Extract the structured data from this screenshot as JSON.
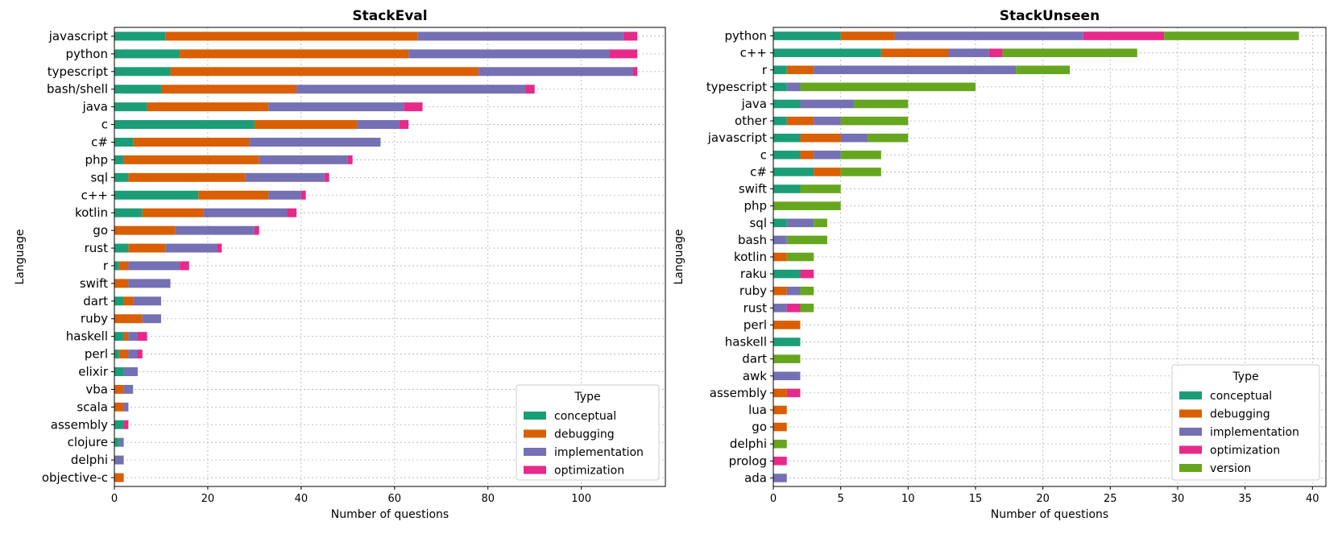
{
  "colors": {
    "conceptual": "#1b9e77",
    "debugging": "#d95f02",
    "implementation": "#7570b3",
    "optimization": "#e7298a",
    "version": "#66a61e"
  },
  "chart_data": [
    {
      "type": "bar",
      "orientation": "horizontal",
      "stacked": true,
      "title": "StackEval",
      "xlabel": "Number of questions",
      "ylabel": "Language",
      "xlim": [
        0,
        118
      ],
      "xticks": [
        0,
        20,
        40,
        60,
        80,
        100
      ],
      "grid": true,
      "legend_title": "Type",
      "legend_position": "lower right",
      "categories": [
        "javascript",
        "python",
        "typescript",
        "bash/shell",
        "java",
        "c",
        "c#",
        "php",
        "sql",
        "c++",
        "kotlin",
        "go",
        "rust",
        "r",
        "swift",
        "dart",
        "ruby",
        "haskell",
        "perl",
        "elixir",
        "vba",
        "scala",
        "assembly",
        "clojure",
        "delphi",
        "objective-c"
      ],
      "series": [
        {
          "name": "conceptual",
          "values": [
            11,
            14,
            12,
            10,
            7,
            30,
            4,
            2,
            3,
            18,
            6,
            0,
            3,
            1,
            0,
            2,
            0,
            2,
            1,
            2,
            0,
            0,
            2,
            1,
            0,
            0
          ]
        },
        {
          "name": "debugging",
          "values": [
            54,
            49,
            66,
            29,
            26,
            22,
            25,
            29,
            25,
            15,
            13,
            13,
            8,
            2,
            3,
            2,
            6,
            1,
            2,
            0,
            2,
            2,
            0,
            0,
            0,
            2
          ]
        },
        {
          "name": "implementation",
          "values": [
            44,
            43,
            33,
            49,
            29,
            9,
            28,
            19,
            17,
            7,
            18,
            17,
            11,
            11,
            9,
            6,
            4,
            2,
            2,
            3,
            2,
            1,
            0,
            1,
            2,
            0
          ]
        },
        {
          "name": "optimization",
          "values": [
            3,
            6,
            1,
            2,
            4,
            2,
            0,
            1,
            1,
            1,
            2,
            1,
            1,
            2,
            0,
            0,
            0,
            2,
            1,
            0,
            0,
            0,
            1,
            0,
            0,
            0
          ]
        }
      ]
    },
    {
      "type": "bar",
      "orientation": "horizontal",
      "stacked": true,
      "title": "StackUnseen",
      "xlabel": "Number of questions",
      "ylabel": "Language",
      "xlim": [
        0,
        41
      ],
      "xticks": [
        0,
        5,
        10,
        15,
        20,
        25,
        30,
        35,
        40
      ],
      "grid": true,
      "legend_title": "Type",
      "legend_position": "lower right",
      "categories": [
        "python",
        "c++",
        "r",
        "typescript",
        "java",
        "other",
        "javascript",
        "c",
        "c#",
        "swift",
        "php",
        "sql",
        "bash",
        "kotlin",
        "raku",
        "ruby",
        "rust",
        "perl",
        "haskell",
        "dart",
        "awk",
        "assembly",
        "lua",
        "go",
        "delphi",
        "prolog",
        "ada"
      ],
      "series": [
        {
          "name": "conceptual",
          "values": [
            5,
            8,
            1,
            1,
            2,
            1,
            2,
            2,
            3,
            2,
            0,
            1,
            0,
            0,
            2,
            0,
            0,
            0,
            2,
            0,
            0,
            0,
            0,
            0,
            0,
            0,
            0
          ]
        },
        {
          "name": "debugging",
          "values": [
            4,
            5,
            2,
            0,
            0,
            2,
            3,
            1,
            2,
            0,
            0,
            0,
            0,
            1,
            0,
            1,
            0,
            2,
            0,
            0,
            0,
            1,
            1,
            1,
            0,
            0,
            0
          ]
        },
        {
          "name": "implementation",
          "values": [
            14,
            3,
            15,
            1,
            4,
            2,
            2,
            2,
            0,
            0,
            0,
            2,
            1,
            0,
            0,
            1,
            1,
            0,
            0,
            0,
            2,
            0,
            0,
            0,
            0,
            0,
            1
          ]
        },
        {
          "name": "optimization",
          "values": [
            6,
            1,
            0,
            0,
            0,
            0,
            0,
            0,
            0,
            0,
            0,
            0,
            0,
            0,
            1,
            0,
            1,
            0,
            0,
            0,
            0,
            1,
            0,
            0,
            0,
            1,
            0
          ]
        },
        {
          "name": "version",
          "values": [
            10,
            10,
            4,
            13,
            4,
            5,
            3,
            3,
            3,
            3,
            5,
            1,
            3,
            2,
            0,
            1,
            1,
            0,
            0,
            2,
            0,
            0,
            0,
            0,
            1,
            0,
            0
          ]
        }
      ]
    }
  ]
}
